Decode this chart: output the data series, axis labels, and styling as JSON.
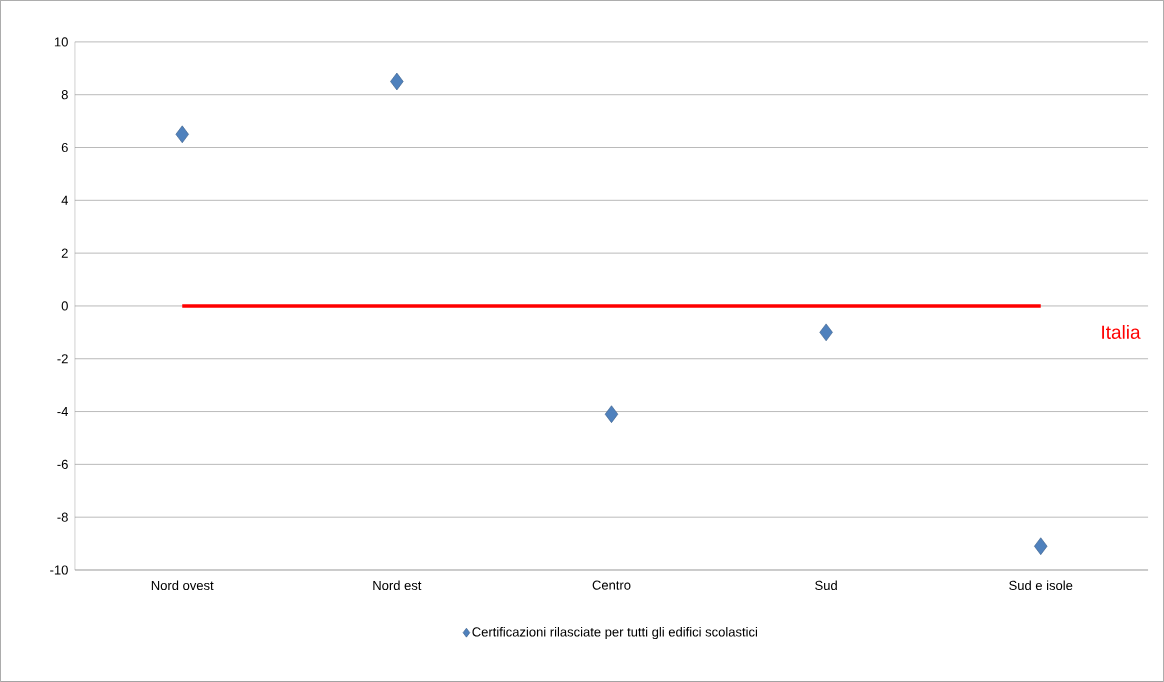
{
  "chart_data": {
    "type": "scatter",
    "categories": [
      "Nord ovest",
      "Nord est",
      "Centro",
      "Sud",
      "Sud e isole"
    ],
    "series": [
      {
        "name": "Certificazioni rilasciate per tutti gli edifici scolastici",
        "color": "#4f81bd",
        "values": [
          6.5,
          8.5,
          -4.1,
          -1.0,
          -9.1
        ]
      }
    ],
    "ylim": [
      -10,
      10
    ],
    "yticks": [
      -10,
      -8,
      -6,
      -4,
      -2,
      0,
      2,
      4,
      6,
      8,
      10
    ],
    "ref_lines": [
      {
        "axis": "y",
        "value": 0,
        "label": "Italia",
        "color": "#ff0000"
      }
    ],
    "grid": "y",
    "legend": "bottom",
    "marker": "diamond"
  }
}
